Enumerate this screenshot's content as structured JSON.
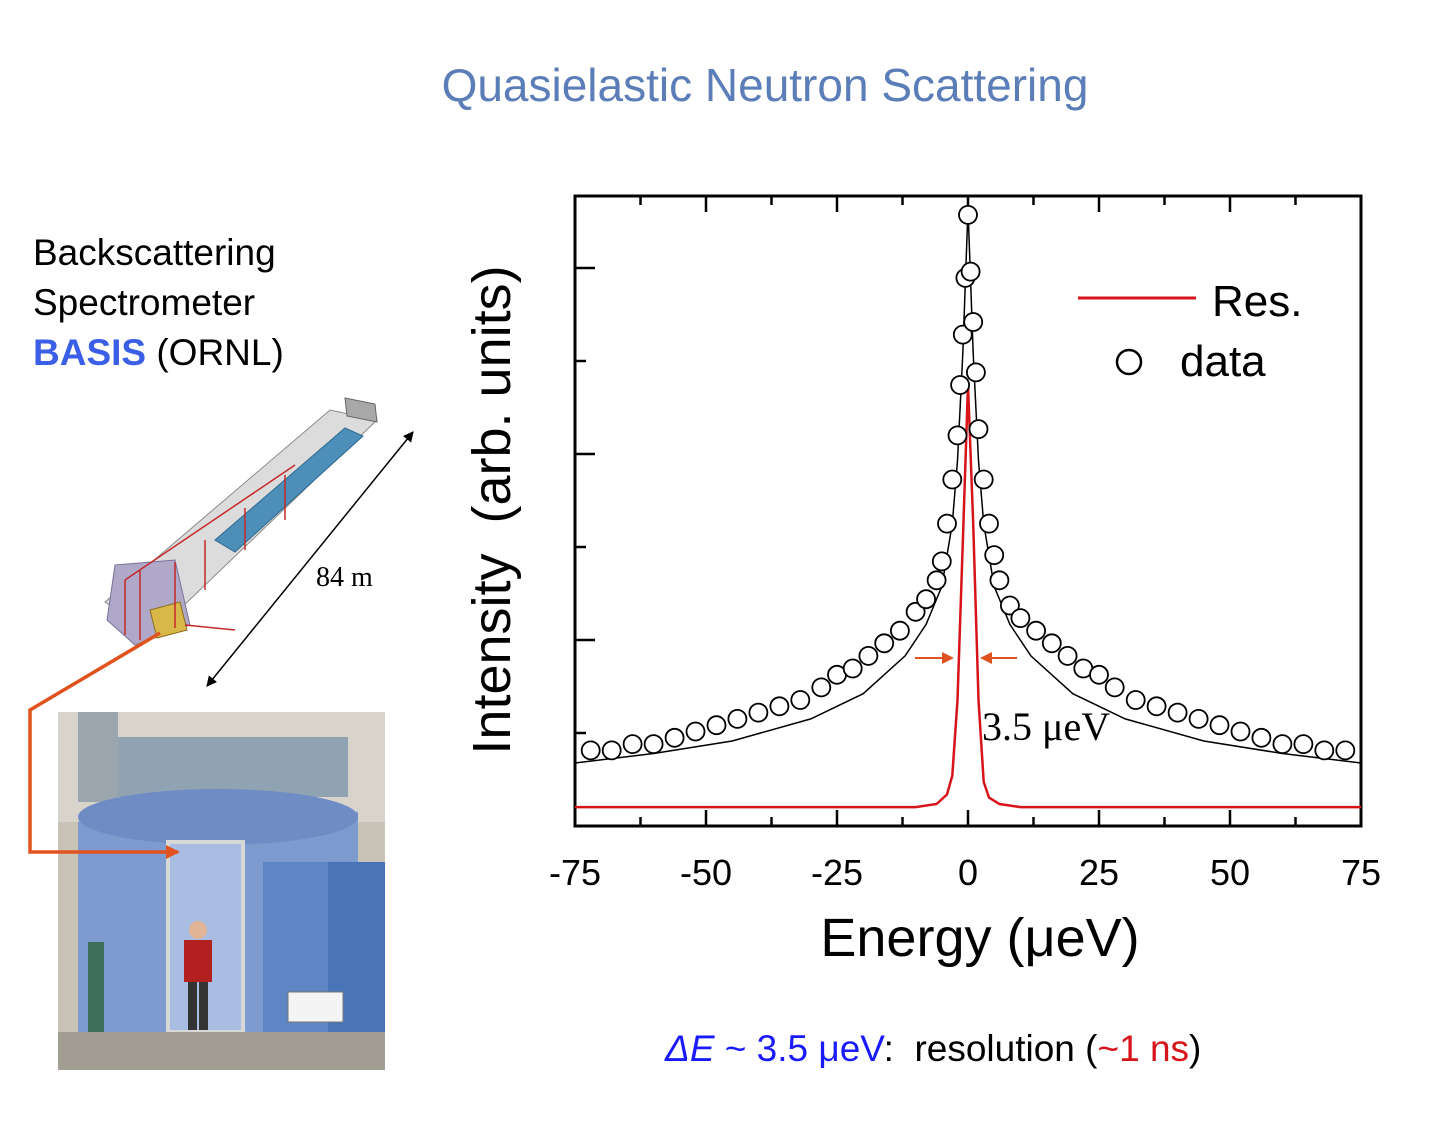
{
  "slide": {
    "title": "Quasielastic Neutron Scattering",
    "instrument_line1": "Backscattering",
    "instrument_line2": "Spectrometer",
    "instrument_name": "BASIS",
    "instrument_lab": "(ORNL)",
    "distance_label": "84 m",
    "caption": {
      "delta_e": "ΔE",
      "approx_value": "~ 3.5 μeV",
      "colon": ":",
      "resolution_word": "resolution (",
      "time_value": "~1 ns",
      "close_paren": ")"
    },
    "colors": {
      "title": "#5b7db8",
      "basis": "#3b5fe6",
      "resolution_curve": "#d6141a",
      "arrow": "#e0531f"
    }
  },
  "chart_data": {
    "type": "line",
    "xlabel": "Energy (μeV)",
    "ylabel": "Intensity  (arb. units)",
    "xlim": [
      -75,
      75
    ],
    "ylim": [
      0,
      1
    ],
    "x_ticks": [
      -75,
      -50,
      -25,
      0,
      25,
      50,
      75
    ],
    "x_tick_labels": [
      "-75",
      "-50",
      "-25",
      "0",
      "25",
      "50",
      "75"
    ],
    "y_tick_labels_shown": false,
    "legend": {
      "placement": "top-right",
      "entries": [
        "Res.",
        "data"
      ]
    },
    "annotation": "3.5 μeV",
    "series": [
      {
        "name": "Res.",
        "style": "line",
        "color": "#d6141a",
        "x": [
          -75,
          -20,
          -10,
          -6,
          -4,
          -3,
          -2,
          -1,
          0,
          1,
          2,
          3,
          4,
          6,
          10,
          20,
          75
        ],
        "y": [
          0.03,
          0.03,
          0.03,
          0.035,
          0.05,
          0.08,
          0.2,
          0.45,
          0.7,
          0.48,
          0.2,
          0.07,
          0.045,
          0.035,
          0.03,
          0.03,
          0.03
        ]
      },
      {
        "name": "data",
        "style": "markers",
        "marker": "open-circle",
        "x": [
          -72,
          -68,
          -64,
          -60,
          -56,
          -52,
          -48,
          -44,
          -40,
          -36,
          -32,
          -28,
          -25,
          -22,
          -19,
          -16,
          -13,
          -10,
          -8,
          -6,
          -5,
          -4,
          -3,
          -2,
          -1.5,
          -1,
          -0.5,
          0,
          0.5,
          1,
          1.5,
          2,
          3,
          4,
          5,
          6,
          8,
          10,
          13,
          16,
          19,
          22,
          25,
          28,
          32,
          36,
          40,
          44,
          48,
          52,
          56,
          60,
          64,
          68,
          72
        ],
        "y": [
          0.12,
          0.12,
          0.13,
          0.13,
          0.14,
          0.15,
          0.16,
          0.17,
          0.18,
          0.19,
          0.2,
          0.22,
          0.24,
          0.25,
          0.27,
          0.29,
          0.31,
          0.34,
          0.36,
          0.39,
          0.42,
          0.48,
          0.55,
          0.62,
          0.7,
          0.78,
          0.87,
          0.97,
          0.88,
          0.8,
          0.72,
          0.63,
          0.55,
          0.48,
          0.43,
          0.39,
          0.35,
          0.33,
          0.31,
          0.29,
          0.27,
          0.25,
          0.24,
          0.22,
          0.2,
          0.19,
          0.18,
          0.17,
          0.16,
          0.15,
          0.14,
          0.13,
          0.13,
          0.12,
          0.12
        ]
      },
      {
        "name": "",
        "style": "line",
        "color": "#000000",
        "x": [
          -75,
          -60,
          -45,
          -30,
          -20,
          -12,
          -8,
          -5,
          -3,
          -2,
          -1,
          0,
          1,
          2,
          3,
          5,
          8,
          12,
          20,
          30,
          45,
          60,
          75
        ],
        "y": [
          0.1,
          0.115,
          0.135,
          0.17,
          0.21,
          0.27,
          0.32,
          0.38,
          0.48,
          0.58,
          0.75,
          0.98,
          0.75,
          0.58,
          0.48,
          0.38,
          0.32,
          0.27,
          0.21,
          0.17,
          0.135,
          0.115,
          0.1
        ]
      }
    ]
  }
}
